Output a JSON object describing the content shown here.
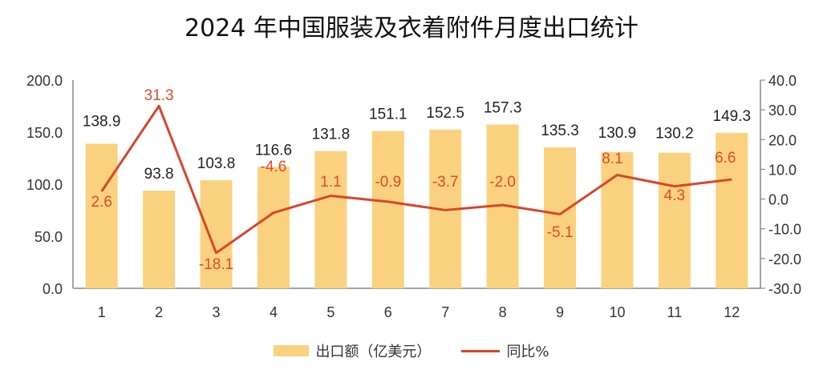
{
  "chart_data": {
    "type": "bar+line",
    "title": "2024 年中国服装及衣着附件月度出口统计",
    "categories": [
      "1",
      "2",
      "3",
      "4",
      "5",
      "6",
      "7",
      "8",
      "9",
      "10",
      "11",
      "12"
    ],
    "series": [
      {
        "name": "出口额（亿美元）",
        "type": "bar",
        "axis": "left",
        "color": "#fad27f",
        "values": [
          138.9,
          93.8,
          103.8,
          116.6,
          131.8,
          151.1,
          152.5,
          157.3,
          135.3,
          130.9,
          130.2,
          149.3
        ]
      },
      {
        "name": "同比%",
        "type": "line",
        "axis": "right",
        "color": "#d9452a",
        "values": [
          2.6,
          31.3,
          -18.1,
          -4.6,
          1.1,
          -0.9,
          -3.7,
          -2.0,
          -5.1,
          8.1,
          4.3,
          6.6
        ]
      }
    ],
    "left_axis": {
      "ylim": [
        0,
        200
      ],
      "ticks": [
        "0.0",
        "50.0",
        "100.0",
        "150.0",
        "200.0"
      ]
    },
    "right_axis": {
      "ylim": [
        -30,
        40
      ],
      "ticks": [
        "-30.0",
        "-20.0",
        "-10.0",
        "0.0",
        "10.0",
        "20.0",
        "30.0",
        "40.0"
      ]
    },
    "xlabel": "",
    "ylabel": "",
    "grid": false,
    "legend_position": "bottom"
  },
  "legend": {
    "bar_label": "出口额（亿美元）",
    "line_label": "同比%"
  }
}
